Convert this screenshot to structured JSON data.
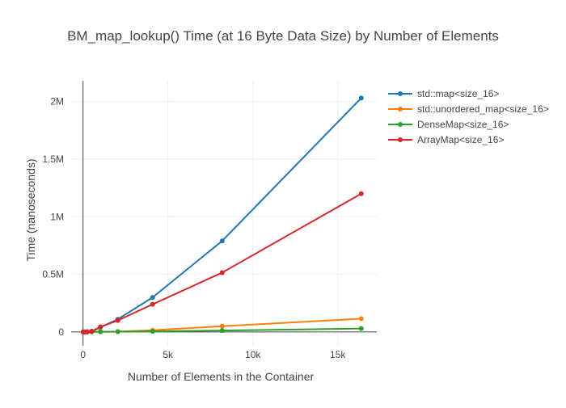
{
  "chart_data": {
    "type": "line",
    "title": "BM_map_lookup() Time (at 16 Byte Data Size) by Number of Elements",
    "xlabel": "Number of Elements in the Container",
    "ylabel": "Time (nanoseconds)",
    "xlim": [
      -700,
      17300
    ],
    "ylim": [
      -120000,
      2180000
    ],
    "x_ticks": [
      0,
      5000,
      10000,
      15000
    ],
    "x_tick_labels": [
      "0",
      "5k",
      "10k",
      "15k"
    ],
    "y_ticks": [
      0,
      500000,
      1000000,
      1500000,
      2000000
    ],
    "y_tick_labels": [
      "0",
      "0.5M",
      "1M",
      "1.5M",
      "2M"
    ],
    "grid": true,
    "legend_position": "top-right",
    "x": [
      8,
      16,
      32,
      64,
      128,
      256,
      512,
      1024,
      2048,
      4096,
      8192,
      16384
    ],
    "series": [
      {
        "name": "std::map<size_16>",
        "color": "#1f77b4",
        "values": [
          20,
          40,
          90,
          200,
          450,
          1500,
          5000,
          40000,
          110000,
          300000,
          790000,
          2030000
        ]
      },
      {
        "name": "std::unordered_map<size_16>",
        "color": "#ff7f0e",
        "values": [
          10,
          20,
          40,
          80,
          160,
          320,
          650,
          1500,
          3500,
          15000,
          50000,
          115000
        ]
      },
      {
        "name": "DenseMap<size_16>",
        "color": "#2ca02c",
        "values": [
          10,
          20,
          35,
          70,
          140,
          280,
          560,
          1200,
          2500,
          5000,
          12000,
          30000
        ]
      },
      {
        "name": "ArrayMap<size_16>",
        "color": "#d62728",
        "values": [
          15,
          30,
          70,
          150,
          400,
          1500,
          6000,
          45000,
          100000,
          240000,
          515000,
          1200000
        ]
      }
    ]
  }
}
